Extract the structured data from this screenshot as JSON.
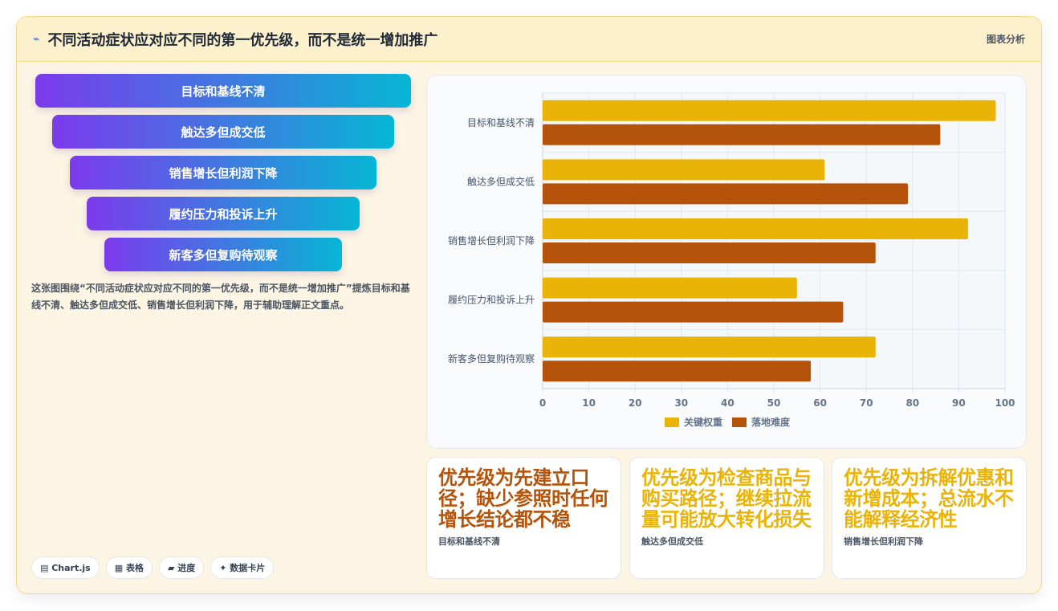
{
  "header": {
    "icon": "pulse-icon",
    "title": "不同活动症状应对应不同的第一优先级，而不是统一增加推广",
    "tag": "图表分析"
  },
  "funnel": [
    "目标和基线不清",
    "触达多但成交低",
    "销售增长但利润下降",
    "履约压力和投诉上升",
    "新客多但复购待观察"
  ],
  "description": "这张图围绕“不同活动症状应对应不同的第一优先级，而不是统一增加推广”提炼目标和基线不清、触达多但成交低、销售增长但利润下降，用于辅助理解正文重点。",
  "chips": [
    "▤ Chart.js",
    "▦ 表格",
    "▰ 进度",
    "✦ 数据卡片"
  ],
  "colors": {
    "series1": "#eab308",
    "series2": "#b45309",
    "stat1": "#b45309",
    "stat2": "#eab308",
    "stat3": "#eab308"
  },
  "chart_data": {
    "type": "bar",
    "orientation": "horizontal",
    "categories": [
      "目标和基线不清",
      "触达多但成交低",
      "销售增长但利润下降",
      "履约压力和投诉上升",
      "新客多但复购待观察"
    ],
    "series": [
      {
        "name": "关键权重",
        "values": [
          98,
          61,
          92,
          55,
          72
        ]
      },
      {
        "name": "落地难度",
        "values": [
          86,
          79,
          72,
          65,
          58
        ]
      }
    ],
    "xlim": [
      0,
      100
    ],
    "xticks": [
      "0",
      "10",
      "20",
      "30",
      "40",
      "50",
      "60",
      "70",
      "80",
      "90",
      "100"
    ],
    "grid": true,
    "legend": "bottom"
  },
  "stats": [
    {
      "value": "优先级为先建立口径；缺少参照时任何增长结论都不稳",
      "label": "目标和基线不清"
    },
    {
      "value": "优先级为检查商品与购买路径；继续拉流量可能放大转化损失",
      "label": "触达多但成交低"
    },
    {
      "value": "优先级为拆解优惠和新增成本；总流水不能解释经济性",
      "label": "销售增长但利润下降"
    }
  ]
}
